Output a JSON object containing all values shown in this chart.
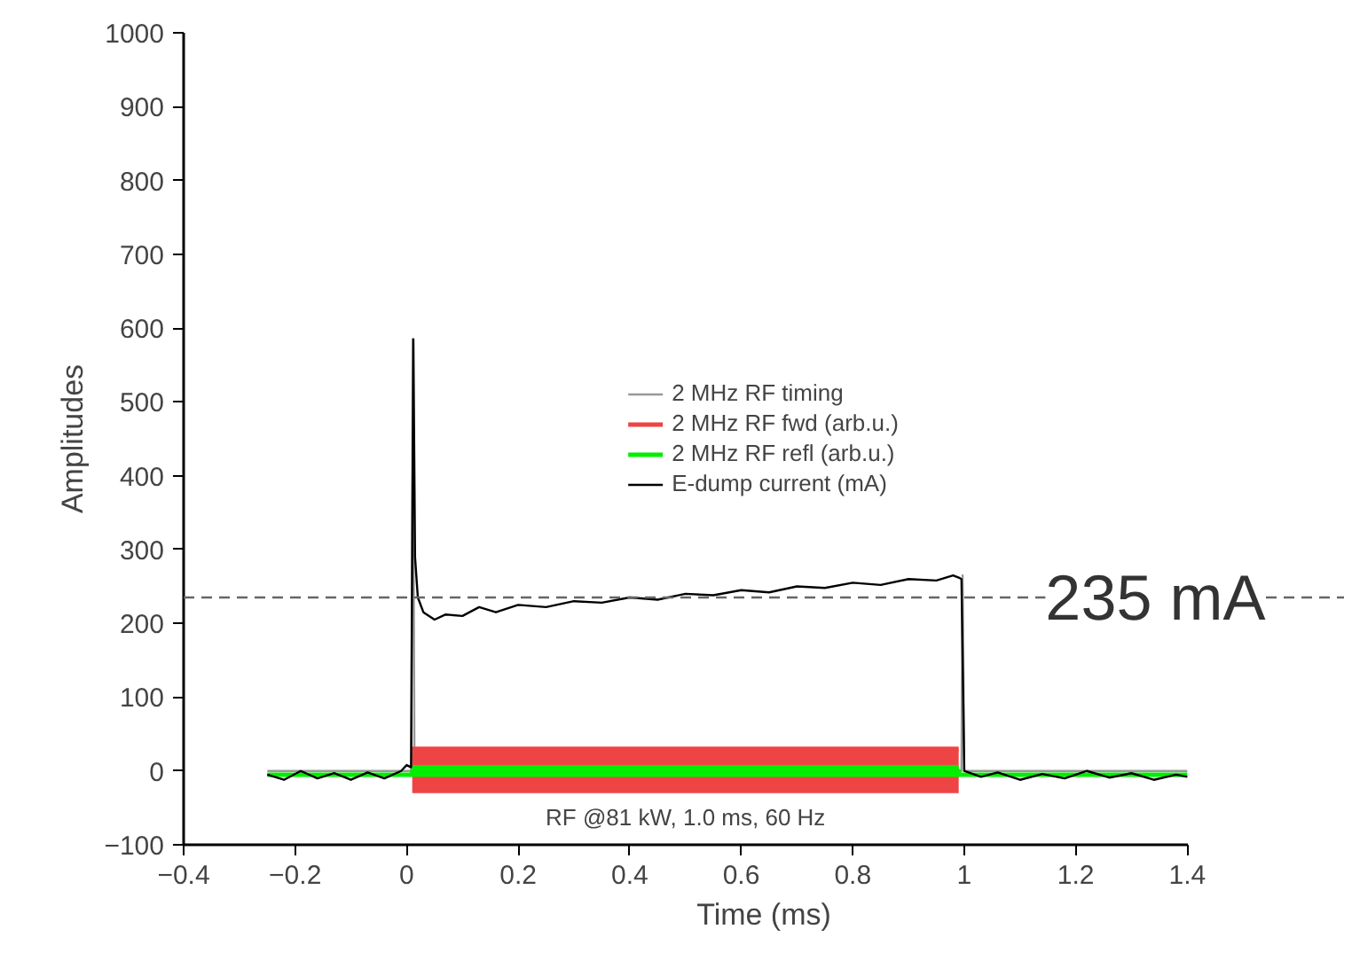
{
  "chart_data": {
    "type": "line",
    "xlabel": "Time (ms)",
    "ylabel": "Amplitudes",
    "xlim": [
      -0.4,
      1.4
    ],
    "ylim": [
      -100,
      1000
    ],
    "xticks": [
      {
        "value": -0.4,
        "label": "−0.4"
      },
      {
        "value": -0.2,
        "label": "−0.2"
      },
      0.0,
      0.2,
      0.4,
      0.6,
      0.8,
      1.0,
      1.2,
      1.4
    ],
    "yticks": [
      {
        "value": -100,
        "label": "−100"
      },
      0,
      100,
      200,
      300,
      400,
      500,
      600,
      700,
      800,
      900,
      1000
    ],
    "grid": false,
    "legend": "center",
    "series": [
      {
        "name": "2 MHz RF timing",
        "color": "#999999",
        "x": [
          -0.25,
          0.008,
          0.011,
          0.014,
          0.995,
          0.997,
          1.0,
          1.4
        ],
        "values": [
          0,
          0,
          585,
          0,
          0,
          265,
          0,
          0
        ]
      },
      {
        "name": "2 MHz RF fwd (arb.u.)",
        "color": "#ef4444",
        "x": [
          0.01,
          0.99
        ],
        "values": [
          30,
          30
        ],
        "lower": [
          -30,
          -30
        ],
        "upper": [
          30,
          30
        ]
      },
      {
        "name": "2 MHz RF refl (arb.u.)",
        "color": "#00ee00",
        "x": [
          -0.25,
          0.01,
          0.01,
          0.99,
          0.99,
          1.4
        ],
        "values": [
          -5,
          -5,
          0,
          0,
          -5,
          -5
        ],
        "lower": [
          null,
          null,
          -8,
          -8,
          null,
          null
        ],
        "upper": [
          null,
          null,
          8,
          8,
          null,
          null
        ]
      },
      {
        "name": "E-dump current (mA)",
        "color": "#000000",
        "x": [
          -0.25,
          -0.22,
          -0.19,
          -0.16,
          -0.13,
          -0.1,
          -0.07,
          -0.04,
          -0.01,
          0.0,
          0.008,
          0.012,
          0.015,
          0.02,
          0.03,
          0.05,
          0.07,
          0.1,
          0.13,
          0.16,
          0.2,
          0.25,
          0.3,
          0.35,
          0.4,
          0.45,
          0.5,
          0.55,
          0.6,
          0.65,
          0.7,
          0.75,
          0.8,
          0.85,
          0.9,
          0.95,
          0.98,
          0.99,
          0.995,
          1.0,
          1.03,
          1.06,
          1.1,
          1.14,
          1.18,
          1.22,
          1.26,
          1.3,
          1.34,
          1.38,
          1.4
        ],
        "values": [
          -5,
          -12,
          0,
          -10,
          -3,
          -12,
          -2,
          -10,
          0,
          8,
          5,
          585,
          290,
          235,
          215,
          205,
          212,
          210,
          222,
          215,
          225,
          222,
          230,
          228,
          235,
          232,
          240,
          238,
          245,
          242,
          250,
          248,
          255,
          252,
          260,
          258,
          265,
          262,
          260,
          0,
          -8,
          -2,
          -12,
          -4,
          -10,
          0,
          -9,
          -3,
          -12,
          -5,
          -8
        ]
      }
    ],
    "ref_lines": [
      {
        "axis": "y",
        "value": 235,
        "label": "235 mA",
        "line_style": "dashed",
        "color": "#666666"
      }
    ],
    "annotations": [
      "RF @81 kW, 1.0 ms, 60 Hz"
    ]
  }
}
